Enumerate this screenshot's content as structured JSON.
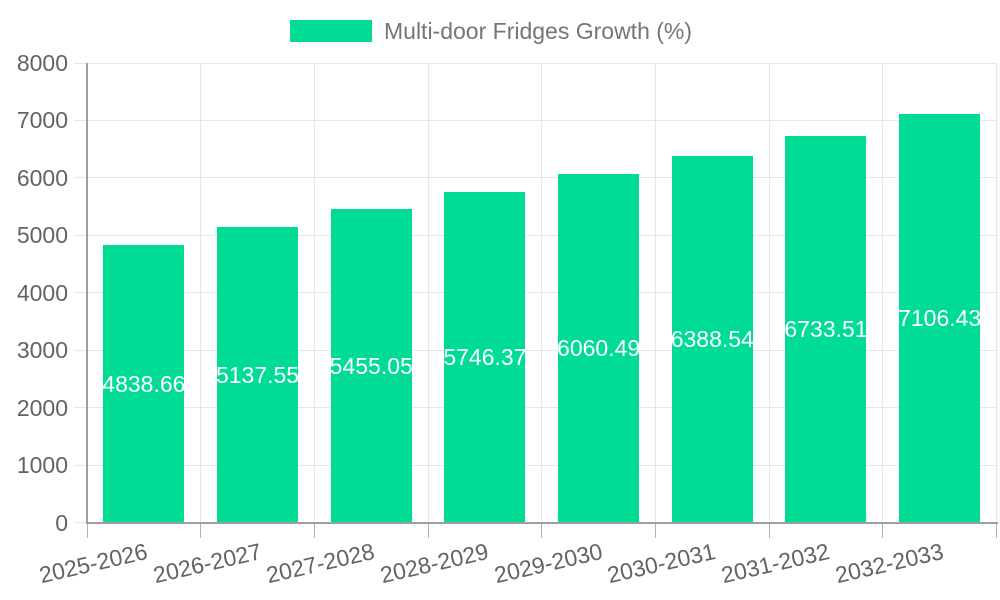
{
  "chart_data": {
    "type": "bar",
    "title": "Multi-door Fridges Growth (%)",
    "legend": {
      "position": "top",
      "entries": [
        "Multi-door Fridges Growth (%)"
      ]
    },
    "categories": [
      "2025-2026",
      "2026-2027",
      "2027-2028",
      "2028-2029",
      "2029-2030",
      "2030-2031",
      "2031-2032",
      "2032-2033"
    ],
    "values": [
      4838.66,
      5137.55,
      5455.05,
      5746.37,
      6060.49,
      6388.54,
      6733.51,
      7106.43
    ],
    "value_labels": [
      "4838.66",
      "5137.55",
      "5455.05",
      "5746.37",
      "6060.49",
      "6388.54",
      "6733.51",
      "7106.43"
    ],
    "xlabel": "",
    "ylabel": "",
    "ylim": [
      0,
      8000
    ],
    "yticks": [
      0,
      1000,
      2000,
      3000,
      4000,
      5000,
      6000,
      7000,
      8000
    ],
    "ytick_labels": [
      "0",
      "1000",
      "2000",
      "3000",
      "4000",
      "5000",
      "6000",
      "7000",
      "8000"
    ],
    "grid": true
  },
  "colors": {
    "bar": "#00DC96",
    "grid": "#e6e6e6",
    "axis": "#9e9e9e",
    "tick": "#b3b3b3",
    "axis_label": "#636363",
    "legend_text": "#757575",
    "bar_label": "#ffffff",
    "background": "#ffffff"
  }
}
